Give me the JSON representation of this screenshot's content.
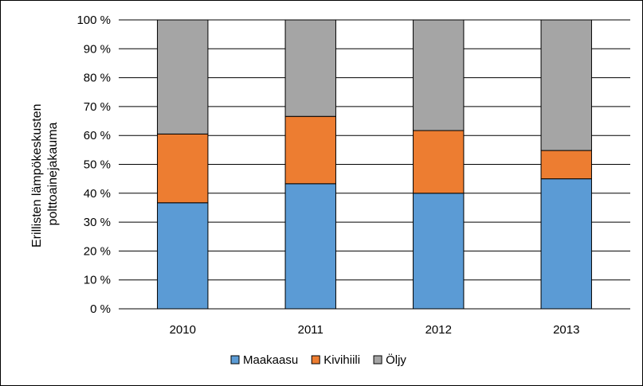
{
  "chart_data": {
    "type": "bar",
    "stacked": true,
    "categories": [
      "2010",
      "2011",
      "2012",
      "2013"
    ],
    "series": [
      {
        "name": "Maakaasu",
        "color": "#5B9BD5",
        "values": [
          36.7,
          43.3,
          40.0,
          45.0
        ]
      },
      {
        "name": "Kivihiili",
        "color": "#ED7D31",
        "values": [
          23.8,
          23.3,
          21.7,
          9.8
        ]
      },
      {
        "name": "Öljy",
        "color": "#A5A5A5",
        "values": [
          39.5,
          33.4,
          38.3,
          45.2
        ]
      }
    ],
    "ylabel_lines": [
      "Erillisten lämpökeskusten",
      "polttoainejakauma"
    ],
    "ylim": [
      0,
      100
    ],
    "yticks": [
      "0 %",
      "10 %",
      "20 %",
      "30 %",
      "40 %",
      "50 %",
      "60 %",
      "70 %",
      "80 %",
      "90 %",
      "100 %"
    ],
    "grid": true,
    "legend_position": "bottom"
  }
}
